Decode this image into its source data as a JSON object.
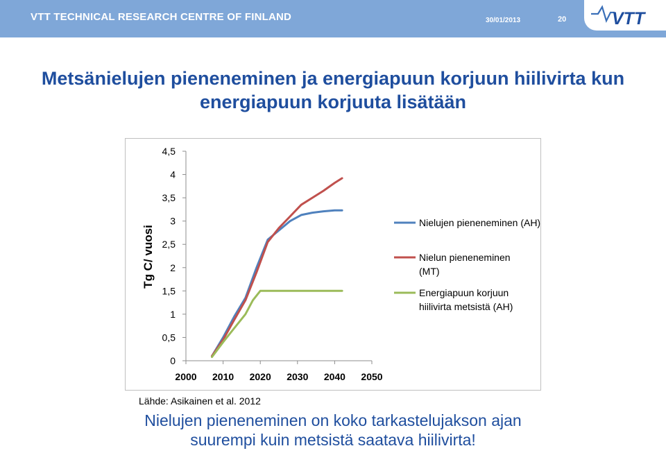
{
  "header": {
    "org": "VTT TECHNICAL RESEARCH CENTRE OF FINLAND",
    "date": "30/01/2013",
    "page_number": "20",
    "logo_text": "VTT"
  },
  "title": {
    "line1": "Metsänielujen pieneneminen ja energiapuun korjuun hiilivirta kun",
    "line2": "energiapuun korjuuta lisätään"
  },
  "source": "Lähde: Asikainen et al. 2012",
  "conclusion": {
    "line1": "Nielujen pieneneminen on koko tarkastelujakson ajan",
    "line2": "suurempi kuin metsistä saatava hiilivirta!"
  },
  "chart_data": {
    "type": "line",
    "ylabel": "Tg C/ vuosi",
    "xlabel": "",
    "xlim": [
      2000,
      2050
    ],
    "ylim": [
      0,
      4.5
    ],
    "x_ticks": [
      "2000",
      "2010",
      "2020",
      "2030",
      "2040",
      "2050"
    ],
    "y_ticks": [
      "0",
      "0,5",
      "1",
      "1,5",
      "2",
      "2,5",
      "3",
      "3,5",
      "4",
      "4,5"
    ],
    "legend_position": "right",
    "series": [
      {
        "name": "Nielujen pieneneminen (AH)",
        "color": "#4f81bd",
        "points": [
          [
            2007,
            0.1
          ],
          [
            2010,
            0.5
          ],
          [
            2013,
            0.95
          ],
          [
            2016,
            1.35
          ],
          [
            2019,
            2.0
          ],
          [
            2022,
            2.6
          ],
          [
            2025,
            2.8
          ],
          [
            2028,
            3.0
          ],
          [
            2031,
            3.13
          ],
          [
            2034,
            3.18
          ],
          [
            2037,
            3.21
          ],
          [
            2040,
            3.23
          ],
          [
            2042,
            3.23
          ]
        ]
      },
      {
        "name": "Nielun pieneneminen (MT)",
        "color": "#c0504d",
        "points": [
          [
            2007,
            0.1
          ],
          [
            2010,
            0.45
          ],
          [
            2013,
            0.88
          ],
          [
            2016,
            1.3
          ],
          [
            2019,
            1.9
          ],
          [
            2022,
            2.55
          ],
          [
            2025,
            2.85
          ],
          [
            2028,
            3.1
          ],
          [
            2031,
            3.35
          ],
          [
            2034,
            3.5
          ],
          [
            2037,
            3.65
          ],
          [
            2040,
            3.82
          ],
          [
            2042,
            3.92
          ]
        ]
      },
      {
        "name": "Energiapuun korjuun hiilivirta metsistä (AH)",
        "color": "#9bbb59",
        "points": [
          [
            2007,
            0.08
          ],
          [
            2010,
            0.4
          ],
          [
            2013,
            0.7
          ],
          [
            2016,
            1.0
          ],
          [
            2018,
            1.3
          ],
          [
            2020,
            1.5
          ],
          [
            2025,
            1.5
          ],
          [
            2030,
            1.5
          ],
          [
            2035,
            1.5
          ],
          [
            2040,
            1.5
          ],
          [
            2042,
            1.5
          ]
        ]
      }
    ]
  }
}
